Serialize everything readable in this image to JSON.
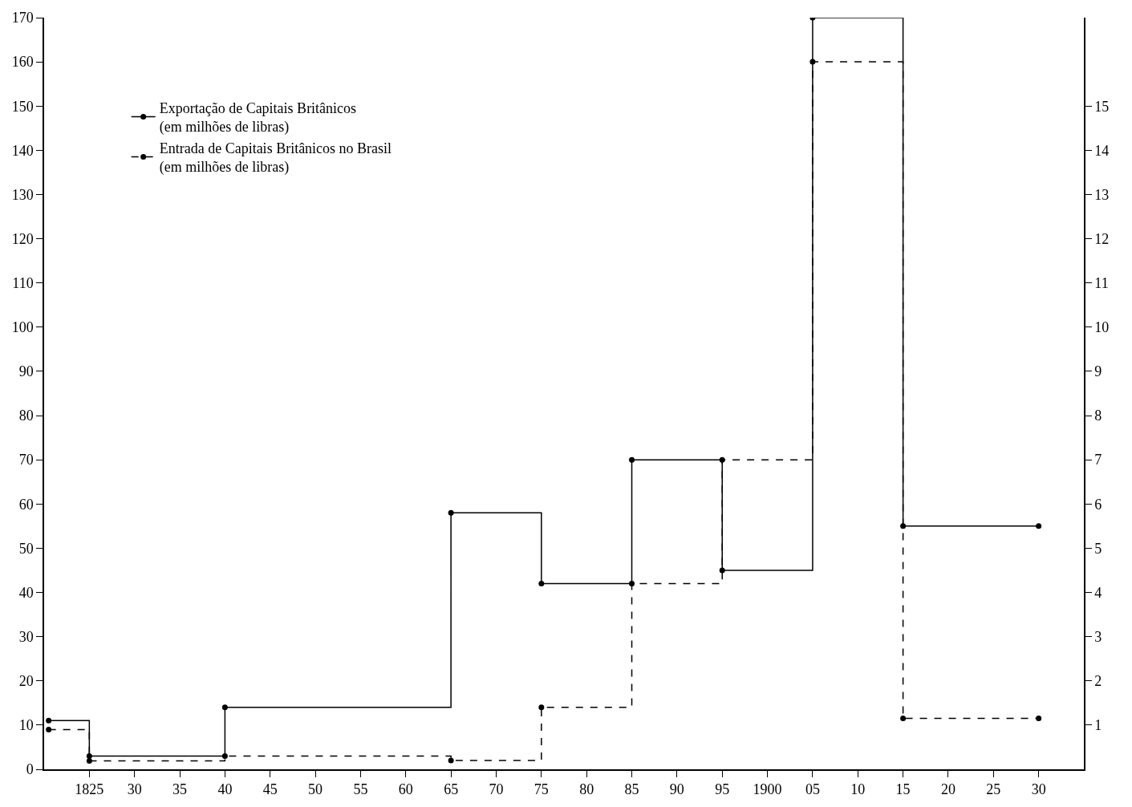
{
  "chart_data": {
    "type": "step",
    "x": [
      1820.5,
      1825,
      1840,
      1865,
      1875,
      1885,
      1895,
      1905,
      1915,
      1930
    ],
    "series": [
      {
        "name": "Exportação de Capitais Britânicos\n(em milhões de libras)",
        "color": "#000000",
        "line_style": "solid",
        "values": [
          11,
          3,
          14,
          58,
          42,
          70,
          45,
          170,
          55,
          55
        ]
      },
      {
        "name": "Entrada de Capitais Britânicos no Brasil\n(em milhões de libras)",
        "color": "#000000",
        "line_style": "dashed",
        "axis": "y2",
        "values": [
          0.9,
          0.19,
          0.3,
          0.2,
          1.4,
          4.2,
          7,
          16,
          1.15,
          1.15
        ]
      }
    ],
    "xlim": [
      1820,
      1935
    ],
    "xticks": [
      {
        "value": 1825,
        "label": "1825"
      },
      {
        "value": 1830,
        "label": "30"
      },
      {
        "value": 1835,
        "label": "35"
      },
      {
        "value": 1840,
        "label": "40"
      },
      {
        "value": 1845,
        "label": "45"
      },
      {
        "value": 1850,
        "label": "50"
      },
      {
        "value": 1855,
        "label": "55"
      },
      {
        "value": 1860,
        "label": "60"
      },
      {
        "value": 1865,
        "label": "65"
      },
      {
        "value": 1870,
        "label": "70"
      },
      {
        "value": 1875,
        "label": "75"
      },
      {
        "value": 1880,
        "label": "80"
      },
      {
        "value": 1885,
        "label": "85"
      },
      {
        "value": 1890,
        "label": "90"
      },
      {
        "value": 1895,
        "label": "95"
      },
      {
        "value": 1900,
        "label": "1900"
      },
      {
        "value": 1905,
        "label": "05"
      },
      {
        "value": 1910,
        "label": "10"
      },
      {
        "value": 1915,
        "label": "15"
      },
      {
        "value": 1920,
        "label": "20"
      },
      {
        "value": 1925,
        "label": "25"
      },
      {
        "value": 1930,
        "label": "30"
      }
    ],
    "ylim": [
      0,
      170
    ],
    "yticks": [
      0,
      10,
      20,
      30,
      40,
      50,
      60,
      70,
      80,
      90,
      100,
      110,
      120,
      130,
      140,
      150,
      160,
      170
    ],
    "y2lim": [
      0,
      17
    ],
    "y2ticks": [
      1,
      2,
      3,
      4,
      5,
      6,
      7,
      8,
      9,
      10,
      11,
      12,
      13,
      14,
      15
    ],
    "marker": "circle",
    "legend": "top left"
  }
}
